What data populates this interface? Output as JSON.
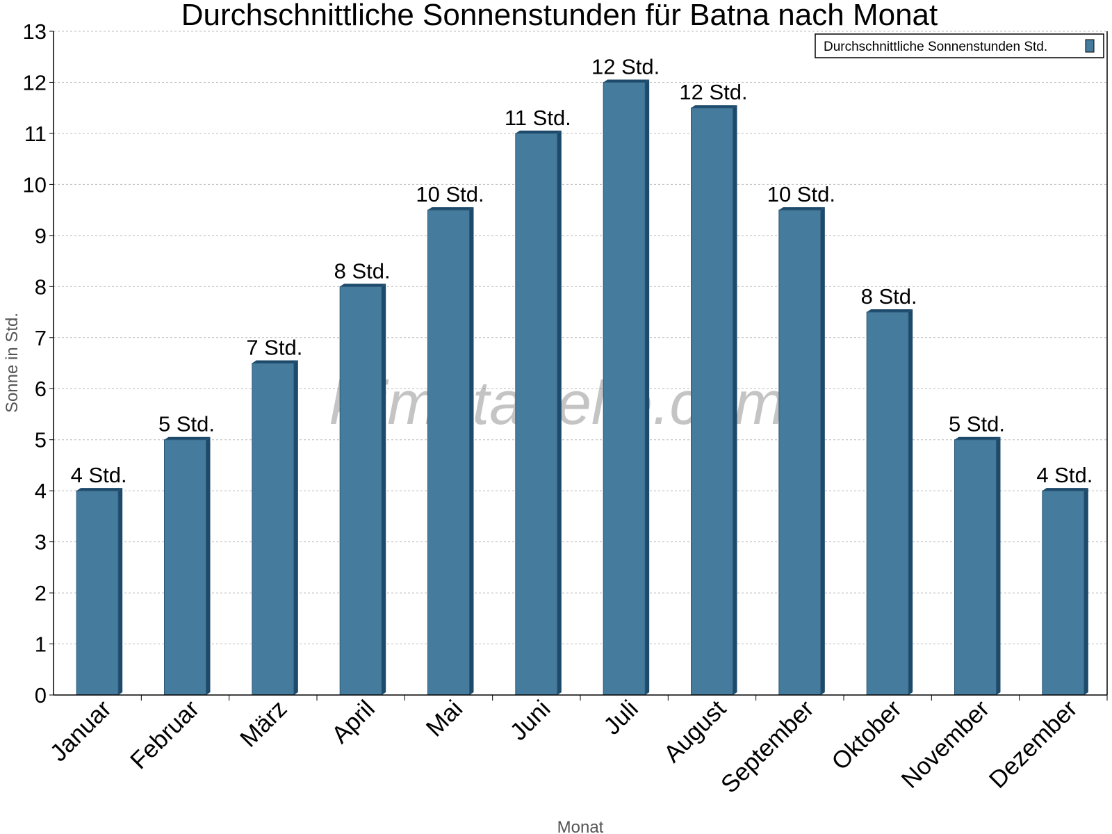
{
  "chart_data": {
    "type": "bar",
    "title": "Durchschnittliche Sonnenstunden für Batna nach Monat",
    "xlabel": "Monat",
    "ylabel": "Sonne in Std.",
    "ylim": [
      0,
      13
    ],
    "yticks": [
      0,
      1,
      2,
      3,
      4,
      5,
      6,
      7,
      8,
      9,
      10,
      11,
      12,
      13
    ],
    "grid": true,
    "legend_position": "top-right",
    "categories": [
      "Januar",
      "Februar",
      "März",
      "April",
      "Mai",
      "Juni",
      "Juli",
      "August",
      "September",
      "Oktober",
      "November",
      "Dezember"
    ],
    "series": [
      {
        "name": "Durchschnittliche Sonnenstunden Std.",
        "values": [
          4,
          5,
          6.5,
          8,
          9.5,
          11,
          12,
          11.5,
          9.5,
          7.5,
          5,
          4
        ],
        "data_labels": [
          "4 Std.",
          "5 Std.",
          "7 Std.",
          "8 Std.",
          "10 Std.",
          "11 Std.",
          "12 Std.",
          "12 Std.",
          "10 Std.",
          "8 Std.",
          "5 Std.",
          "4 Std."
        ],
        "color": "#457b9d",
        "side_color": "#1d4a6b"
      }
    ],
    "watermark": "klimatabelle.com"
  }
}
